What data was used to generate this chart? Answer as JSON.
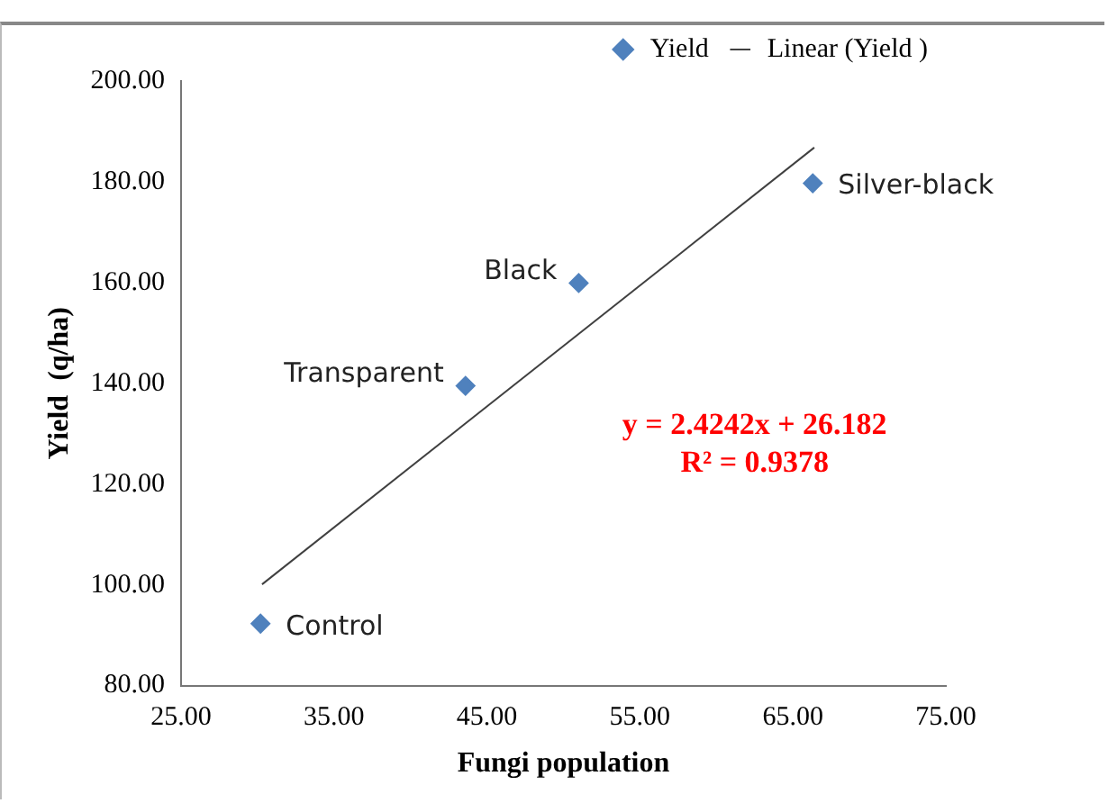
{
  "chart_data": {
    "type": "scatter",
    "xlabel": "Fungi population",
    "ylabel": "Yield  (q/ha)",
    "series": [
      {
        "name": "Yield",
        "type": "scatter",
        "color": "#4f81bd",
        "marker": "diamond",
        "x": [
          30.2,
          43.6,
          51.0,
          66.3
        ],
        "values": [
          92.3,
          139.5,
          159.9,
          179.7
        ]
      },
      {
        "name": "Linear (Yield )",
        "type": "line",
        "color": "#404040",
        "marker": "none",
        "line_style": "solid",
        "x": [
          30.3,
          66.4
        ],
        "values": [
          100.1,
          186.8
        ]
      }
    ],
    "xlim": [
      25,
      75
    ],
    "xticks": [
      {
        "value": 25,
        "label": "25.00"
      },
      {
        "value": 35,
        "label": "35.00"
      },
      {
        "value": 45,
        "label": "45.00"
      },
      {
        "value": 55,
        "label": "55.00"
      },
      {
        "value": 65,
        "label": "65.00"
      },
      {
        "value": 75,
        "label": "75.00"
      }
    ],
    "ylim": [
      80,
      200
    ],
    "yticks": [
      {
        "value": 80,
        "label": "80.00"
      },
      {
        "value": 100,
        "label": "100.00"
      },
      {
        "value": 120,
        "label": "120.00"
      },
      {
        "value": 140,
        "label": "140.00"
      },
      {
        "value": 160,
        "label": "160.00"
      },
      {
        "value": 180,
        "label": "180.00"
      },
      {
        "value": 200,
        "label": "200.00"
      }
    ],
    "annotations": [
      {
        "text": "Control",
        "x": 30.2,
        "y": 92.3
      },
      {
        "text": "Transparent",
        "x": 43.6,
        "y": 139.5
      },
      {
        "text": "Black",
        "x": 51.0,
        "y": 159.9
      },
      {
        "text": "Silver-black",
        "x": 66.3,
        "y": 179.7
      },
      "y = 2.4242x + 26.182",
      "R² = 0.9378"
    ],
    "grid": false,
    "legend": "top right"
  }
}
